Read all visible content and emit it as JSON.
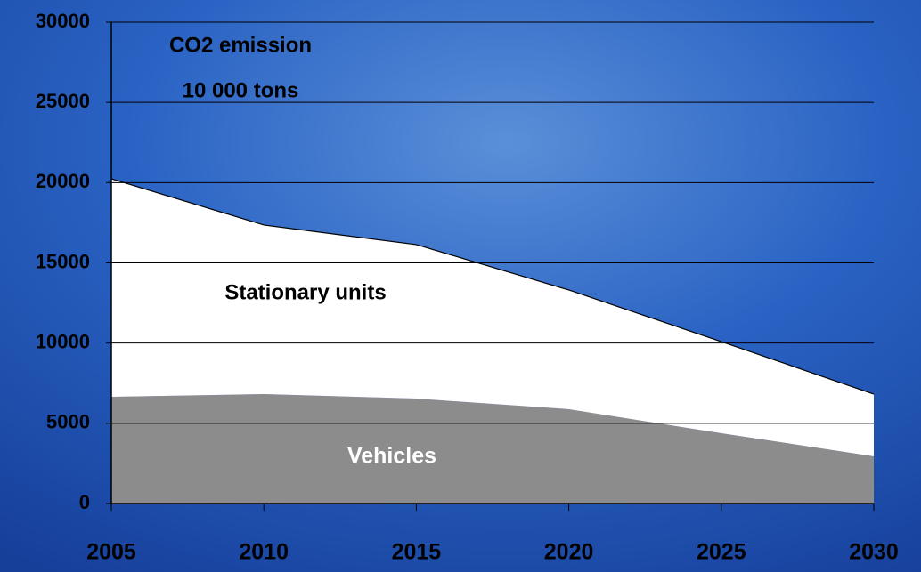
{
  "chart_data": {
    "type": "area",
    "stacked": true,
    "annotations": [
      "CO2 emission",
      "10 000 tons"
    ],
    "x": [
      2005,
      2010,
      2015,
      2020,
      2025,
      2030
    ],
    "series": [
      {
        "name": "Vehicles",
        "color": "#8c8c8c",
        "values": [
          6650,
          6820,
          6540,
          5880,
          4380,
          2940
        ]
      },
      {
        "name": "Stationary units",
        "color": "#ffffff",
        "values": [
          13590,
          10540,
          9600,
          7430,
          5710,
          3880
        ]
      }
    ],
    "xlim": [
      2005,
      2030
    ],
    "xticks": [
      2005,
      2010,
      2015,
      2020,
      2025,
      2030
    ],
    "ylim": [
      0,
      30000
    ],
    "yticks": [
      0,
      5000,
      10000,
      15000,
      20000,
      25000,
      30000
    ],
    "grid": true
  }
}
